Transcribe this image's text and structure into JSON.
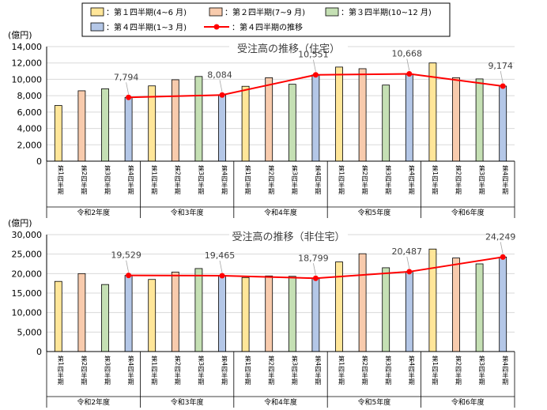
{
  "legend": {
    "entries": [
      {
        "label": "：第１四半期(4~6 月)",
        "color": "#ffe699"
      },
      {
        "label": "：第２四半期(7~9 月)",
        "color": "#f8cbad"
      },
      {
        "label": "：第３四半期(10~12 月)",
        "color": "#c5e0b4"
      },
      {
        "label": "：第４四半期(1~3 月)",
        "color": "#b4c7e7"
      },
      {
        "label": "：第４四半期の推移",
        "color": "#ff0000"
      }
    ]
  },
  "colors": {
    "q1": "#ffe699",
    "q2": "#f8cbad",
    "q3": "#c5e0b4",
    "q4": "#b4c7e7",
    "line": "#ff0000",
    "grid": "#d9d9d9",
    "axis": "#000000"
  },
  "quarter_labels": [
    "第1四半期",
    "第2四半期",
    "第3四半期",
    "第4四半期"
  ],
  "years": [
    "令和2年度",
    "令和3年度",
    "令和4年度",
    "令和5年度",
    "令和6年度"
  ],
  "chart_data": [
    {
      "type": "bar",
      "title": "受注高の推移（住宅）",
      "ylabel": "(億円)",
      "ylim": [
        0,
        14000
      ],
      "yticks": [
        0,
        2000,
        4000,
        6000,
        8000,
        10000,
        12000,
        14000
      ],
      "ytick_labels": [
        "0",
        "2,000",
        "4,000",
        "6,000",
        "8,000",
        "10,000",
        "12,000",
        "14,000"
      ],
      "values": [
        6800,
        8600,
        8850,
        7794,
        9200,
        9950,
        10350,
        8084,
        9150,
        10200,
        9400,
        10551,
        11500,
        11300,
        9300,
        10668,
        12000,
        10200,
        10050,
        9174
      ],
      "line": {
        "name": "第４四半期の推移",
        "values": [
          7794,
          8084,
          10551,
          10668,
          9174
        ],
        "labels": [
          "7,794",
          "8,084",
          "10,551",
          "10,668",
          "9,174"
        ]
      }
    },
    {
      "type": "bar",
      "title": "受注高の推移（非住宅）",
      "ylabel": "(億円)",
      "ylim": [
        0,
        30000
      ],
      "yticks": [
        0,
        5000,
        10000,
        15000,
        20000,
        25000,
        30000
      ],
      "ytick_labels": [
        "0",
        "5,000",
        "10,000",
        "15,000",
        "20,000",
        "25,000",
        "30,000"
      ],
      "values": [
        18000,
        20000,
        17200,
        19529,
        18500,
        20400,
        21300,
        19465,
        19000,
        19400,
        19300,
        18799,
        23000,
        25100,
        21500,
        20487,
        26300,
        24000,
        22500,
        24249
      ],
      "line": {
        "name": "第４四半期の推移",
        "values": [
          19529,
          19465,
          18799,
          20487,
          24249
        ],
        "labels": [
          "19,529",
          "19,465",
          "18,799",
          "20,487",
          "24,249"
        ]
      }
    }
  ]
}
